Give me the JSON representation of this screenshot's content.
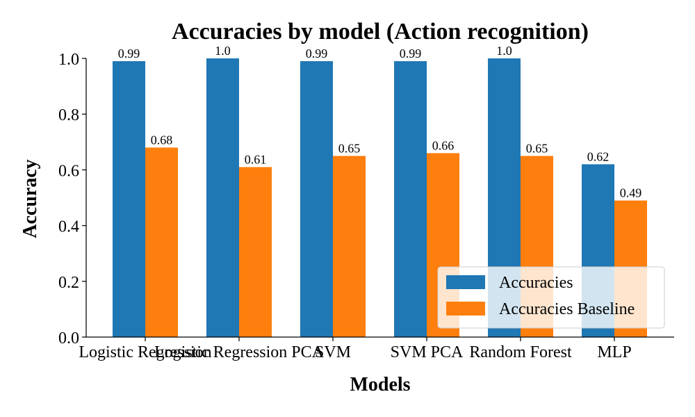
{
  "chart_data": {
    "type": "bar",
    "title": "Accuracies by model (Action recognition)",
    "xlabel": "Models",
    "ylabel": "Accuracy",
    "ylim": [
      0,
      1.0
    ],
    "yticks": [
      "0.0",
      "0.2",
      "0.4",
      "0.6",
      "0.8",
      "1.0"
    ],
    "categories": [
      "Logistic Regression",
      "Logistic Regression PCA",
      "SVM",
      "SVM PCA",
      "Random Forest",
      "MLP"
    ],
    "series": [
      {
        "name": "Accuracies",
        "color": "#1f77b4",
        "values": [
          0.99,
          1.0,
          0.99,
          0.99,
          1.0,
          0.62
        ],
        "labels": [
          "0.99",
          "1.0",
          "0.99",
          "0.99",
          "1.0",
          "0.62"
        ]
      },
      {
        "name": "Accuracies Baseline",
        "color": "#ff7f0e",
        "values": [
          0.68,
          0.61,
          0.65,
          0.66,
          0.65,
          0.49
        ],
        "labels": [
          "0.68",
          "0.61",
          "0.65",
          "0.66",
          "0.65",
          "0.49"
        ]
      }
    ],
    "grid": false,
    "legend": "lower-right"
  }
}
